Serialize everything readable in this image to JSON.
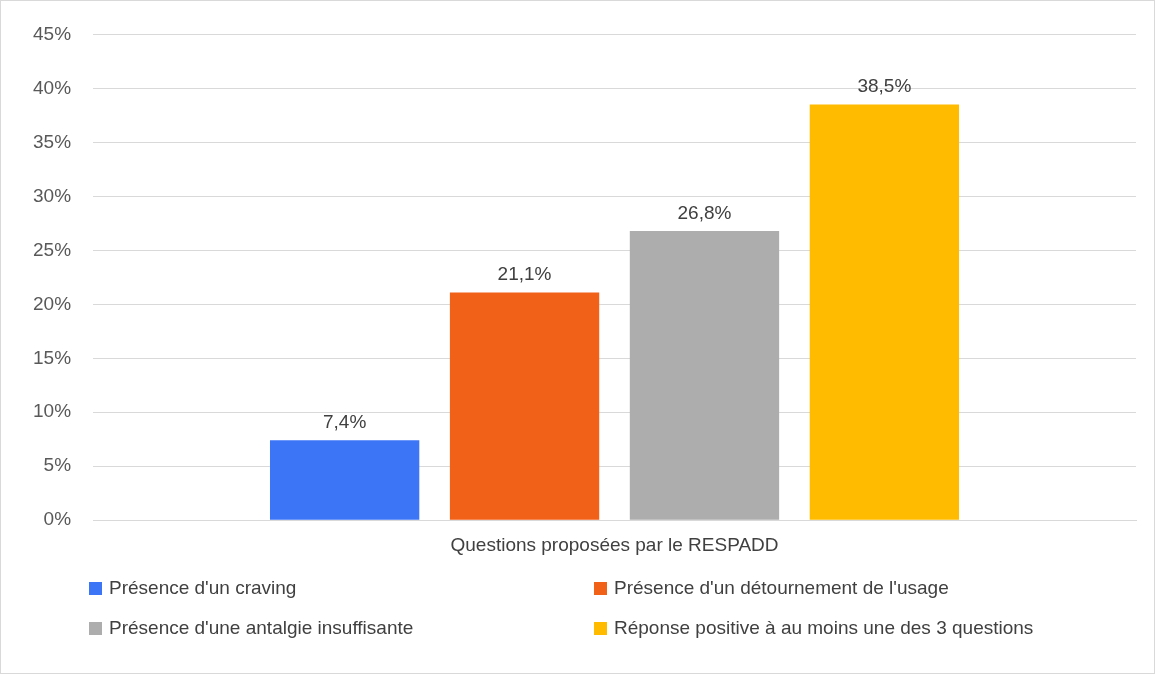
{
  "chart_data": {
    "type": "bar",
    "categories": [
      "Questions proposées par le RESPADD"
    ],
    "series": [
      {
        "name": "Présence d'un craving",
        "color": "#3d75f7",
        "values": [
          7.4
        ],
        "value_labels": [
          "7,4%"
        ]
      },
      {
        "name": "Présence d'un détournement de l'usage",
        "color": "#f26118",
        "values": [
          21.1
        ],
        "value_labels": [
          "21,1%"
        ]
      },
      {
        "name": "Présence d'une antalgie insuffisante",
        "color": "#adadad",
        "values": [
          26.8
        ],
        "value_labels": [
          "26,8%"
        ]
      },
      {
        "name": "Réponse positive à au moins une des 3 questions",
        "color": "#ffbb00",
        "values": [
          38.5
        ],
        "value_labels": [
          "38,5%"
        ]
      }
    ],
    "ylim": [
      0,
      45
    ],
    "yticks": [
      {
        "value": 0,
        "label": "0%"
      },
      {
        "value": 5,
        "label": "5%"
      },
      {
        "value": 10,
        "label": "10%"
      },
      {
        "value": 15,
        "label": "15%"
      },
      {
        "value": 20,
        "label": "20%"
      },
      {
        "value": 25,
        "label": "25%"
      },
      {
        "value": 30,
        "label": "30%"
      },
      {
        "value": 35,
        "label": "35%"
      },
      {
        "value": 40,
        "label": "40%"
      },
      {
        "value": 45,
        "label": "45%"
      }
    ],
    "grid": "y",
    "legend": "bottom"
  }
}
